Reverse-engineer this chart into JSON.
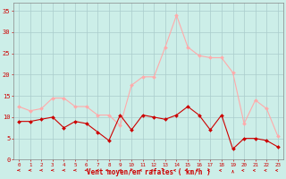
{
  "x": [
    0,
    1,
    2,
    3,
    4,
    5,
    6,
    7,
    8,
    9,
    10,
    11,
    12,
    13,
    14,
    15,
    16,
    17,
    18,
    19,
    20,
    21,
    22,
    23
  ],
  "wind_avg": [
    9,
    9,
    9.5,
    10,
    7.5,
    9,
    8.5,
    6.5,
    4.5,
    10.5,
    7,
    10.5,
    10,
    9.5,
    10.5,
    12.5,
    10.5,
    7,
    10.5,
    2.5,
    5,
    5,
    4.5,
    3
  ],
  "wind_gust": [
    12.5,
    11.5,
    12,
    14.5,
    14.5,
    12.5,
    12.5,
    10.5,
    10.5,
    8,
    17.5,
    19.5,
    19.5,
    26.5,
    34,
    26.5,
    24.5,
    24,
    24,
    20.5,
    8.5,
    14,
    12,
    5.5
  ],
  "avg_color": "#cc0000",
  "gust_color": "#ffaaaa",
  "bg_color": "#cceee8",
  "grid_color": "#aacccc",
  "xlabel": "Vent moyen/en rafales ( km/h )",
  "xlabel_color": "#cc0000",
  "tick_color": "#cc0000",
  "spine_color": "#888888",
  "ylim": [
    0,
    37
  ],
  "yticks": [
    0,
    5,
    10,
    15,
    20,
    25,
    30,
    35
  ],
  "xticks": [
    0,
    1,
    2,
    3,
    4,
    5,
    6,
    7,
    8,
    9,
    10,
    11,
    12,
    13,
    14,
    15,
    16,
    17,
    18,
    19,
    20,
    21,
    22,
    23
  ]
}
